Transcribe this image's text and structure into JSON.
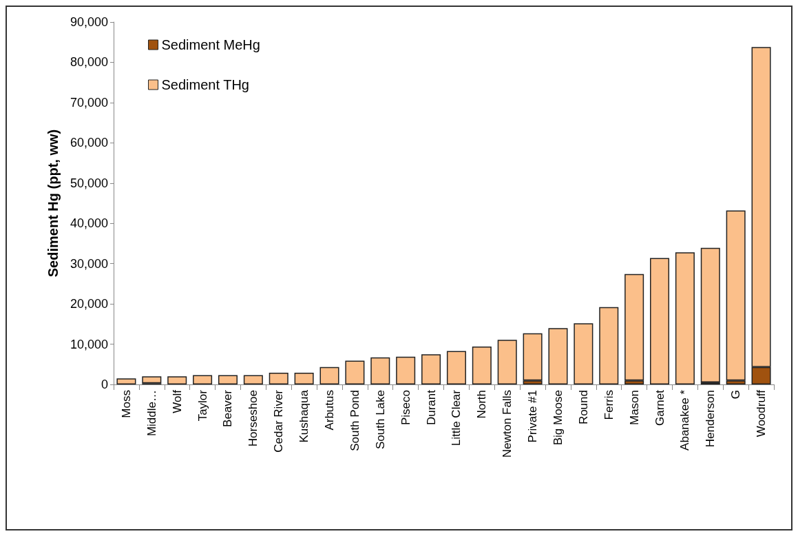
{
  "chart_data": {
    "type": "bar",
    "stacked": true,
    "ylabel": "Sediment Hg (ppt, ww)",
    "categories": [
      "Moss",
      "Middle…",
      "Wolf",
      "Taylor",
      "Beaver",
      "Horseshoe",
      "Cedar River",
      "Kushaqua",
      "Arbutus",
      "South Pond",
      "South Lake",
      "Piseco",
      "Durant",
      "Little Clear",
      "North",
      "Newton Falls",
      "Private #1",
      "Big Moose",
      "Round",
      "Ferris",
      "Mason",
      "Garnet",
      "Abanakee *",
      "Henderson",
      "G",
      "Woodruff"
    ],
    "series": [
      {
        "name": "Sediment MeHg",
        "color": "#a0520f",
        "values": [
          null,
          300,
          null,
          null,
          null,
          null,
          null,
          null,
          null,
          null,
          null,
          null,
          null,
          null,
          null,
          null,
          1000,
          null,
          null,
          null,
          1000,
          null,
          null,
          500,
          1000,
          4300
        ]
      },
      {
        "name": "Sediment THg",
        "color": "#fbbf8a",
        "values": [
          1500,
          1700,
          2000,
          2300,
          2300,
          2300,
          2900,
          2900,
          4300,
          5900,
          6700,
          6900,
          7500,
          8300,
          9400,
          11100,
          11700,
          14000,
          15200,
          19200,
          26400,
          31400,
          32800,
          33400,
          42200,
          79500
        ]
      }
    ],
    "ylim": [
      0,
      90000
    ],
    "yticks": [
      0,
      {
        "value": 10000,
        "label": "10,000"
      },
      {
        "value": 20000,
        "label": "20,000"
      },
      {
        "value": 30000,
        "label": "30,000"
      },
      {
        "value": 40000,
        "label": "40,000"
      },
      {
        "value": 50000,
        "label": "50,000"
      },
      {
        "value": 60000,
        "label": "60,000"
      },
      {
        "value": 70000,
        "label": "70,000"
      },
      {
        "value": 80000,
        "label": "80,000"
      },
      {
        "value": 90000,
        "label": "90,000"
      }
    ],
    "grid": false,
    "legend": "top left"
  }
}
